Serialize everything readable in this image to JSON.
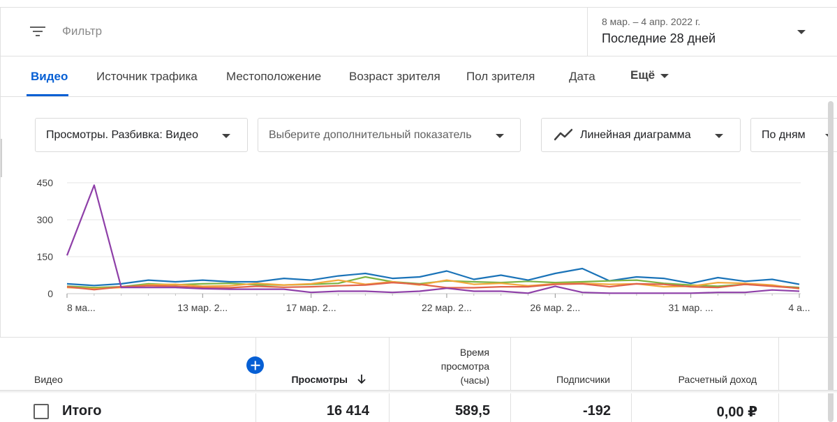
{
  "filter": {
    "placeholder": "Фильтр",
    "date_range": "8 мар. – 4 апр. 2022 г.",
    "period": "Последние 28 дней"
  },
  "tabs": [
    {
      "label": "Видео",
      "active": true
    },
    {
      "label": "Источник трафика"
    },
    {
      "label": "Местоположение"
    },
    {
      "label": "Возраст зрителя"
    },
    {
      "label": "Пол зрителя"
    },
    {
      "label": "Дата"
    },
    {
      "label": "Ещё"
    }
  ],
  "controls": {
    "metric": "Просмотры. Разбивка: Видео",
    "extra_metric": "Выберите дополнительный показатель",
    "chart_type": "Линейная диаграмма",
    "granularity": "По дням"
  },
  "chart_data": {
    "type": "line",
    "y_ticks": [
      "450",
      "300",
      "150",
      "0"
    ],
    "ylim": [
      0,
      450
    ],
    "x_tick_labels": [
      "8 ма...",
      "13 мар. 2...",
      "17 мар. 2...",
      "22 мар. 2...",
      "26 мар. 2...",
      "31 мар. ...",
      "4 а..."
    ],
    "x_tick_index": [
      0,
      5,
      9,
      14,
      18,
      23,
      27
    ],
    "grid": true,
    "series": [
      {
        "color": "#1a73b8",
        "values": [
          40,
          33,
          40,
          55,
          48,
          55,
          48,
          48,
          62,
          55,
          72,
          82,
          62,
          68,
          92,
          58,
          75,
          55,
          82,
          102,
          52,
          68,
          62,
          42,
          65,
          50,
          58,
          38
        ]
      },
      {
        "color": "#7cb342",
        "values": [
          30,
          25,
          28,
          40,
          36,
          40,
          42,
          36,
          35,
          38,
          42,
          68,
          48,
          40,
          52,
          48,
          45,
          50,
          45,
          48,
          52,
          55,
          42,
          35,
          30,
          38,
          32,
          25
        ]
      },
      {
        "color": "#f2a83b",
        "values": [
          25,
          20,
          25,
          36,
          38,
          30,
          32,
          42,
          35,
          40,
          55,
          38,
          48,
          35,
          55,
          38,
          42,
          32,
          40,
          42,
          38,
          40,
          28,
          30,
          45,
          42,
          35,
          20
        ]
      },
      {
        "color": "#e0634a",
        "values": [
          28,
          16,
          28,
          32,
          30,
          25,
          24,
          30,
          26,
          28,
          32,
          35,
          45,
          38,
          24,
          24,
          28,
          28,
          38,
          40,
          28,
          40,
          38,
          28,
          25,
          38,
          30,
          22
        ]
      },
      {
        "color": "#8e3fa8",
        "values": [
          155,
          440,
          25,
          25,
          25,
          20,
          18,
          18,
          18,
          5,
          10,
          10,
          5,
          10,
          22,
          10,
          10,
          2,
          30,
          5,
          2,
          2,
          2,
          2,
          5,
          5,
          15,
          10
        ]
      }
    ]
  },
  "table": {
    "col_video": "Видео",
    "col_views": "Просмотры",
    "col_watch_1": "Время",
    "col_watch_2": "просмотра",
    "col_watch_3": "(часы)",
    "col_subs": "Подписчики",
    "col_revenue": "Расчетный доход",
    "total_label": "Итого",
    "total_views": "16 414",
    "total_watch": "589,5",
    "total_subs": "-192",
    "total_revenue": "0,00 ₽"
  }
}
